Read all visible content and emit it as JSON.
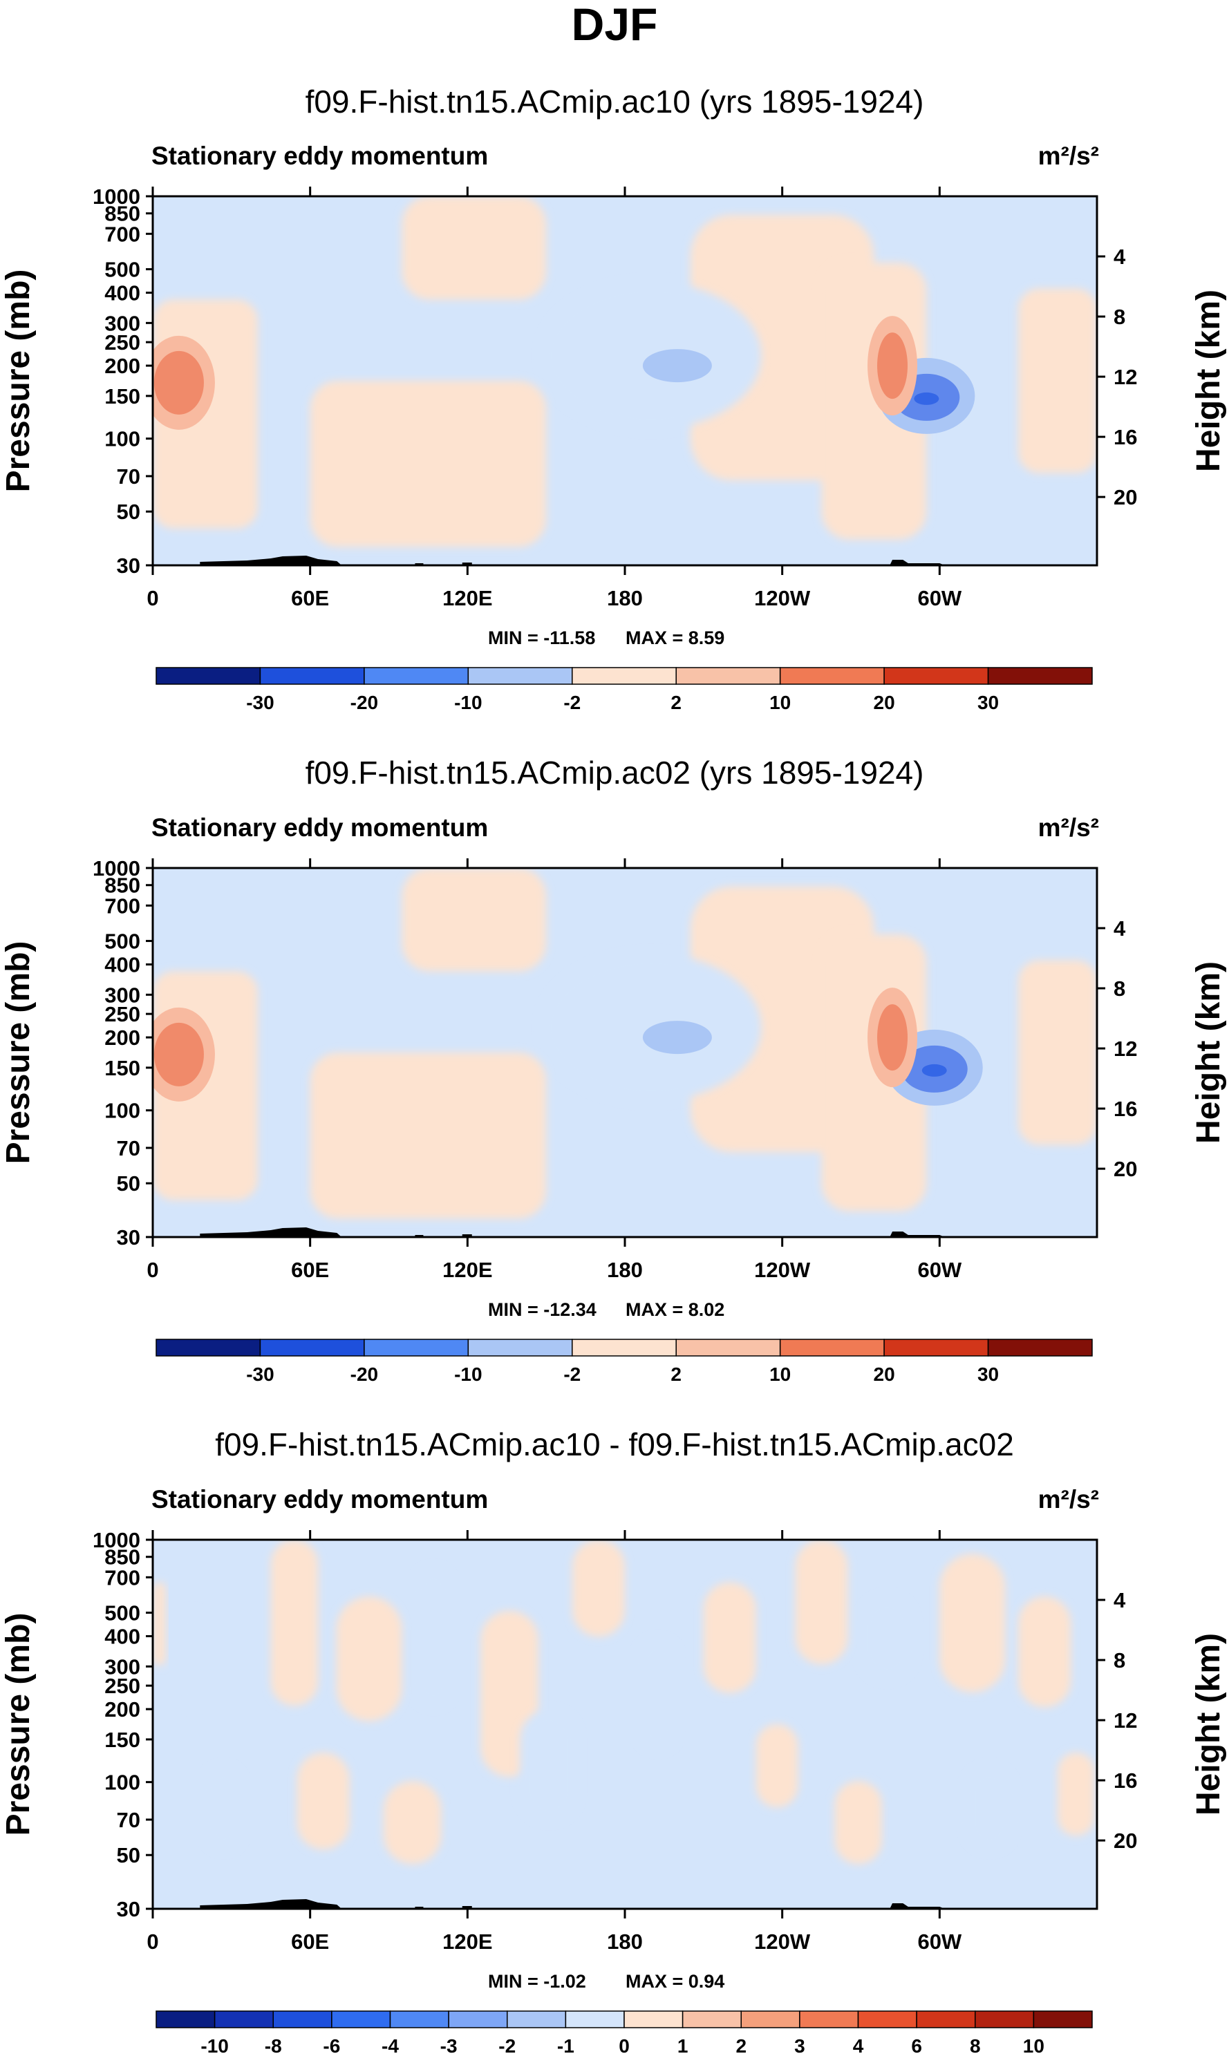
{
  "figure": {
    "title": "DJF",
    "colors": {
      "background": "#ffffff",
      "light_blue": "#d4e5fb",
      "mid_blue": "#aac6f5",
      "deep_blue": "#5f87ec",
      "core_blue": "#3466e6",
      "light_orange": "#fde3d0",
      "mid_orange": "#f8baa0",
      "deep_orange": "#f08a6a",
      "topography": "#000000"
    }
  },
  "chart_data": [
    {
      "type": "heatmap",
      "title": "f09.F-hist.tn15.ACmip.ac10 (yrs 1895-1924)",
      "left_string": "Stationary eddy momentum",
      "units": "m²/s²",
      "ylabel": "Pressure (mb)",
      "ylabel_right": "Height (km)",
      "x_ticks": [
        "0",
        "60E",
        "120E",
        "180",
        "120W",
        "60W"
      ],
      "y_ticks": [
        "30",
        "50",
        "70",
        "100",
        "150",
        "200",
        "250",
        "300",
        "400",
        "500",
        "700",
        "850",
        "1000"
      ],
      "y_right_ticks": [
        "20",
        "16",
        "12",
        "8",
        "4"
      ],
      "xlim_deg_east": [
        0,
        360
      ],
      "ylim_mb": [
        1000,
        30
      ],
      "min_label": "MIN = -11.58",
      "max_label": "MAX =  8.59",
      "min": -11.58,
      "max": 8.59,
      "colorbar_labels": [
        "-30",
        "-20",
        "-10",
        "-2",
        "2",
        "10",
        "20",
        "30"
      ],
      "features": [
        {
          "name": "negative core 60W 150mb",
          "lon": 295,
          "p": 150,
          "value": -11.58
        },
        {
          "name": "negative area 160W 200mb",
          "lon": 200,
          "p": 200,
          "value": -4
        },
        {
          "name": "positive area 10E 170mb",
          "lon": 10,
          "p": 170,
          "value": 5
        },
        {
          "name": "positive area 80W 200mb",
          "lon": 282,
          "p": 200,
          "value": 8.59
        }
      ]
    },
    {
      "type": "heatmap",
      "title": "f09.F-hist.tn15.ACmip.ac02 (yrs 1895-1924)",
      "left_string": "Stationary eddy momentum",
      "units": "m²/s²",
      "ylabel": "Pressure (mb)",
      "ylabel_right": "Height (km)",
      "x_ticks": [
        "0",
        "60E",
        "120E",
        "180",
        "120W",
        "60W"
      ],
      "y_ticks": [
        "30",
        "50",
        "70",
        "100",
        "150",
        "200",
        "250",
        "300",
        "400",
        "500",
        "700",
        "850",
        "1000"
      ],
      "y_right_ticks": [
        "20",
        "16",
        "12",
        "8",
        "4"
      ],
      "xlim_deg_east": [
        0,
        360
      ],
      "ylim_mb": [
        1000,
        30
      ],
      "min_label": "MIN = -12.34",
      "max_label": "MAX =  8.02",
      "min": -12.34,
      "max": 8.02,
      "colorbar_labels": [
        "-30",
        "-20",
        "-10",
        "-2",
        "2",
        "10",
        "20",
        "30"
      ],
      "features": [
        {
          "name": "negative core 60W 150mb",
          "lon": 298,
          "p": 150,
          "value": -12.34
        },
        {
          "name": "negative area 160W 200mb",
          "lon": 200,
          "p": 200,
          "value": -4
        },
        {
          "name": "positive area 10E 170mb",
          "lon": 10,
          "p": 170,
          "value": 6
        },
        {
          "name": "positive area 80W 200mb",
          "lon": 282,
          "p": 200,
          "value": 8.02
        }
      ]
    },
    {
      "type": "heatmap",
      "title": "f09.F-hist.tn15.ACmip.ac10 - f09.F-hist.tn15.ACmip.ac02",
      "left_string": "Stationary eddy momentum",
      "units": "m²/s²",
      "ylabel": "Pressure (mb)",
      "ylabel_right": "Height (km)",
      "x_ticks": [
        "0",
        "60E",
        "120E",
        "180",
        "120W",
        "60W"
      ],
      "y_ticks": [
        "30",
        "50",
        "70",
        "100",
        "150",
        "200",
        "250",
        "300",
        "400",
        "500",
        "700",
        "850",
        "1000"
      ],
      "y_right_ticks": [
        "20",
        "16",
        "12",
        "8",
        "4"
      ],
      "xlim_deg_east": [
        0,
        360
      ],
      "ylim_mb": [
        1000,
        30
      ],
      "min_label": "MIN =  -1.02",
      "max_label": "MAX =  0.94",
      "min": -1.02,
      "max": 0.94,
      "colorbar_labels": [
        "-10",
        "-8",
        "-6",
        "-4",
        "-3",
        "-2",
        "-1",
        "0",
        "1",
        "2",
        "3",
        "4",
        "6",
        "8",
        "10"
      ],
      "features": []
    }
  ]
}
